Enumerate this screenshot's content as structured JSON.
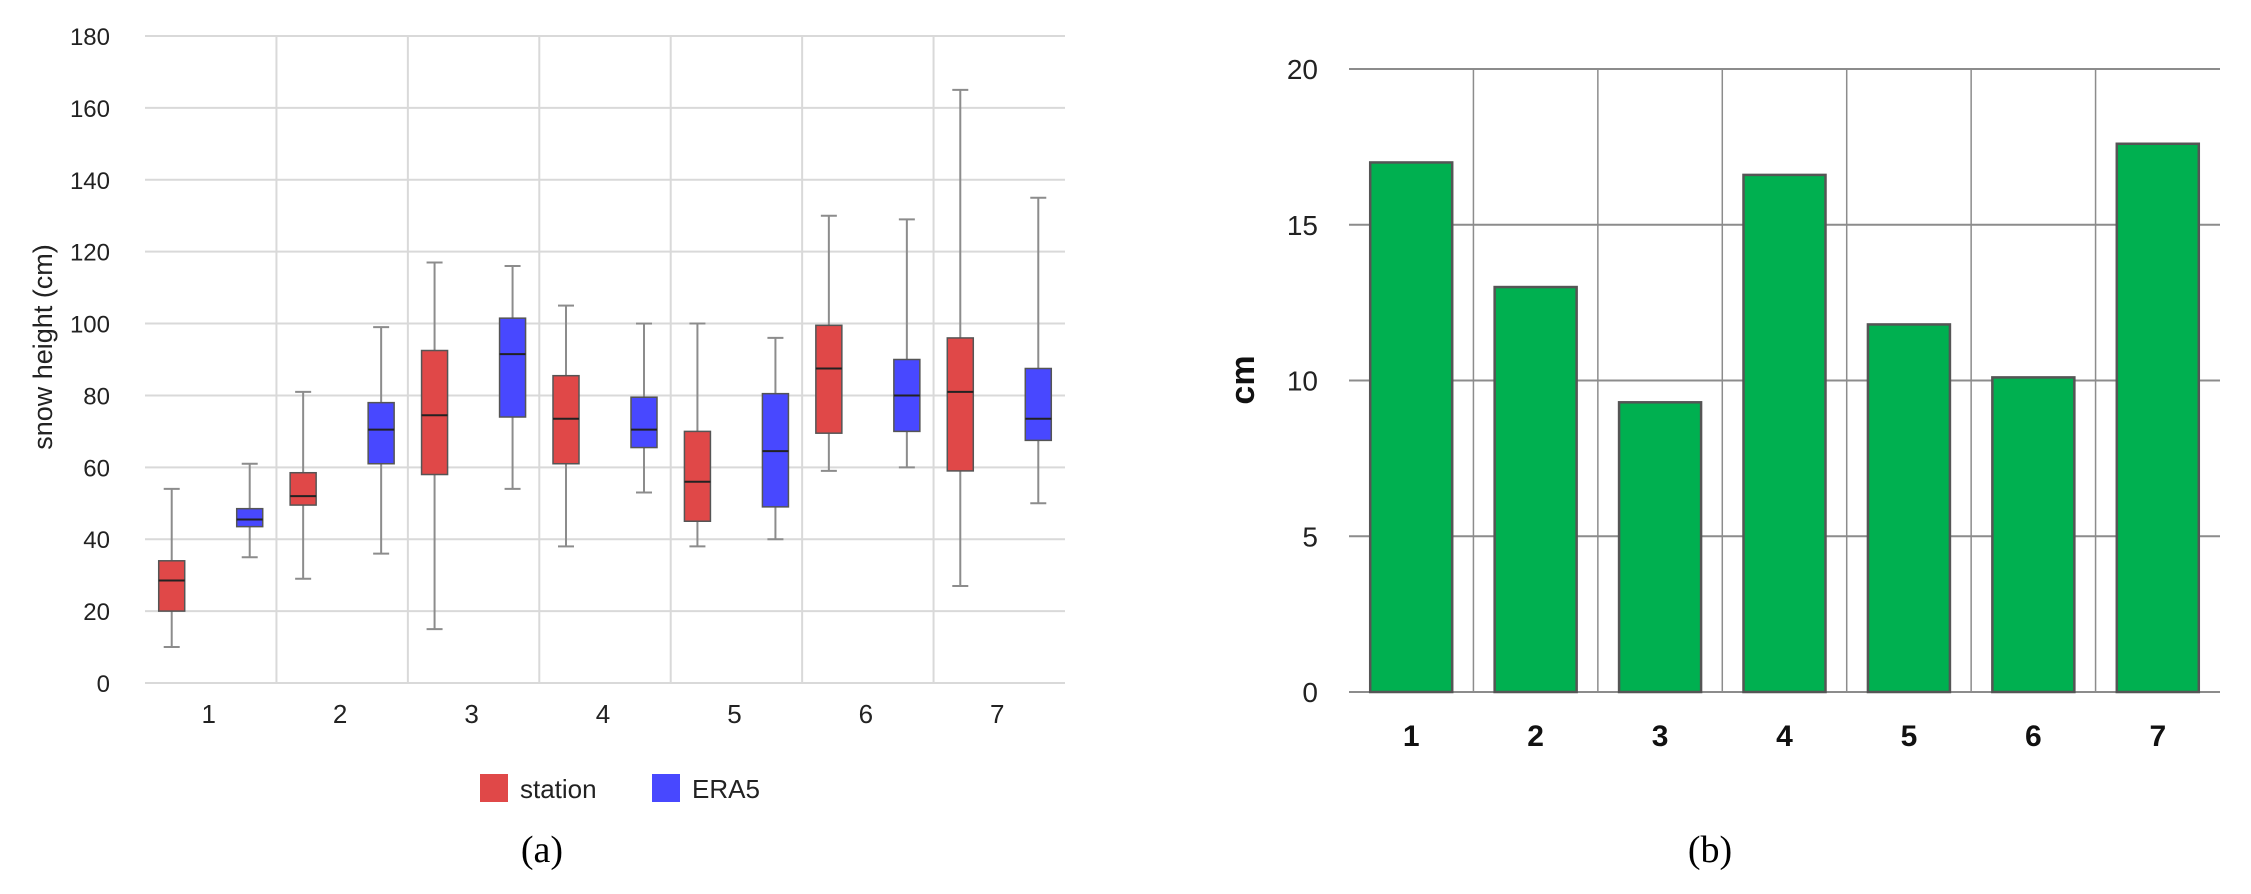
{
  "colors": {
    "station": "#e04848",
    "era5": "#4848ff",
    "bar_fill": "#00b050",
    "bar_stroke": "#555555",
    "grid": "#d9d9d9",
    "grid_dark": "#8c8c8c",
    "whisker": "#8c8c8c"
  },
  "panel_a_label": "(a)",
  "panel_b_label": "(b)",
  "chart_data": [
    {
      "type": "box",
      "title": "",
      "xlabel": "",
      "ylabel": "snow height (cm)",
      "ylim": [
        0,
        180
      ],
      "yticks": [
        0,
        20,
        40,
        60,
        80,
        100,
        120,
        140,
        160,
        180
      ],
      "categories": [
        "1",
        "2",
        "3",
        "4",
        "5",
        "6",
        "7"
      ],
      "grid": true,
      "legend": "bottom-center",
      "series": [
        {
          "name": "station",
          "color": "#e04848",
          "boxes": [
            {
              "min": 10,
              "q1": 20,
              "median": 28.5,
              "q3": 34,
              "max": 54
            },
            {
              "min": 29,
              "q1": 49.5,
              "median": 52,
              "q3": 58.5,
              "max": 81
            },
            {
              "min": 15,
              "q1": 58,
              "median": 74.5,
              "q3": 92.5,
              "max": 117
            },
            {
              "min": 38,
              "q1": 61,
              "median": 73.5,
              "q3": 85.5,
              "max": 105
            },
            {
              "min": 38,
              "q1": 45,
              "median": 56,
              "q3": 70,
              "max": 100
            },
            {
              "min": 59,
              "q1": 69.5,
              "median": 87.5,
              "q3": 99.5,
              "max": 130
            },
            {
              "min": 27,
              "q1": 59,
              "median": 81,
              "q3": 96,
              "max": 165
            }
          ]
        },
        {
          "name": "ERA5",
          "color": "#4848ff",
          "boxes": [
            {
              "min": 35,
              "q1": 43.5,
              "median": 45.5,
              "q3": 48.5,
              "max": 61
            },
            {
              "min": 36,
              "q1": 61,
              "median": 70.5,
              "q3": 78,
              "max": 99
            },
            {
              "min": 54,
              "q1": 74,
              "median": 91.5,
              "q3": 101.5,
              "max": 116
            },
            {
              "min": 53,
              "q1": 65.5,
              "median": 70.5,
              "q3": 79.5,
              "max": 100
            },
            {
              "min": 40,
              "q1": 49,
              "median": 64.5,
              "q3": 80.5,
              "max": 96
            },
            {
              "min": 60,
              "q1": 70,
              "median": 80,
              "q3": 90,
              "max": 129
            },
            {
              "min": 50,
              "q1": 67.5,
              "median": 73.5,
              "q3": 87.5,
              "max": 135
            }
          ]
        }
      ]
    },
    {
      "type": "bar",
      "title": "",
      "xlabel": "",
      "ylabel": "cm",
      "ylim": [
        0,
        20
      ],
      "yticks": [
        0,
        5,
        10,
        15,
        20
      ],
      "categories": [
        "1",
        "2",
        "3",
        "4",
        "5",
        "6",
        "7"
      ],
      "values": [
        17.0,
        13.0,
        9.3,
        16.6,
        11.8,
        10.1,
        17.6
      ],
      "grid": true
    }
  ]
}
